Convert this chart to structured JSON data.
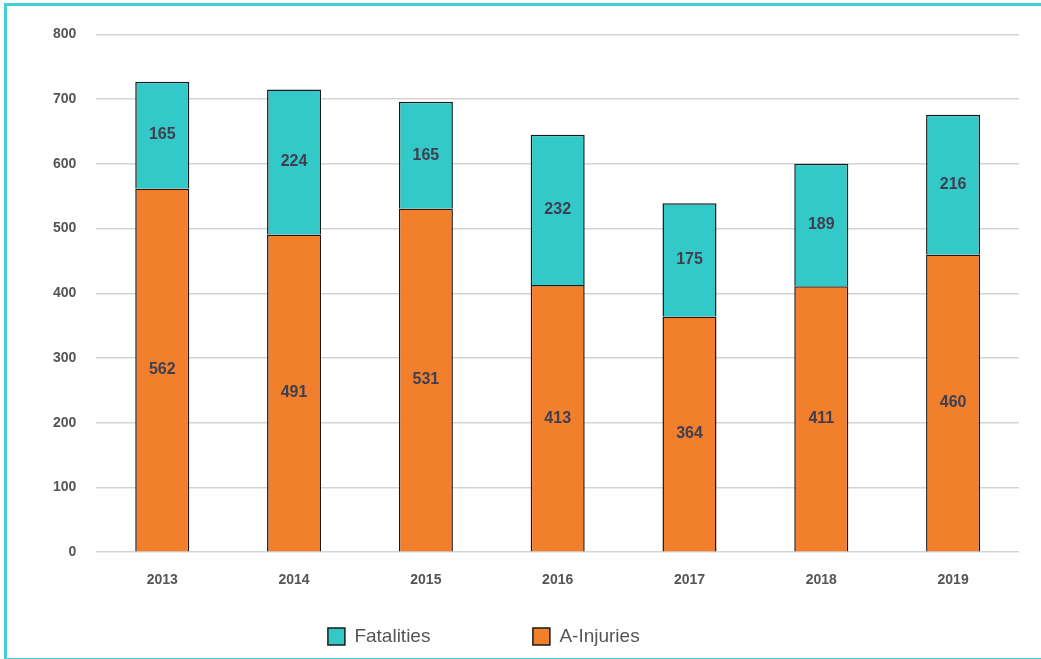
{
  "chart_data": {
    "type": "bar",
    "categories": [
      "2013",
      "2014",
      "2015",
      "2016",
      "2017",
      "2018",
      "2019"
    ],
    "series": [
      {
        "name": "A-Injuries",
        "color": "#f27f2c",
        "values": [
          562,
          491,
          531,
          413,
          364,
          411,
          460
        ]
      },
      {
        "name": "Fatalities",
        "color": "#33c9c9",
        "values": [
          165,
          224,
          165,
          232,
          175,
          189,
          216
        ]
      }
    ],
    "stacked": true,
    "ylim": [
      0,
      800
    ],
    "yticks": [
      0,
      100,
      200,
      300,
      400,
      500,
      600,
      700,
      800
    ],
    "grid": "y",
    "legend": "bottom",
    "data_labels": true
  }
}
